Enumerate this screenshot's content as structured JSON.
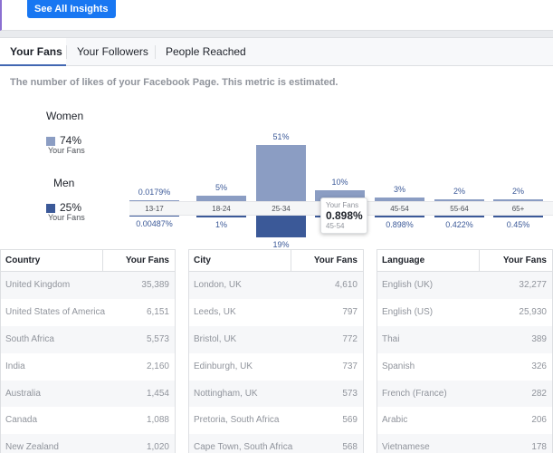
{
  "top": {
    "see_all_label": "See All Insights"
  },
  "tabs": [
    {
      "label": "Your Fans"
    },
    {
      "label": "Your Followers"
    },
    {
      "label": "People Reached"
    }
  ],
  "description": "The number of likes of your Facebook Page. This metric is estimated.",
  "legend": {
    "women": {
      "label": "Women",
      "percent": "74%",
      "sub": "Your Fans",
      "color": "#8b9dc3"
    },
    "men": {
      "label": "Men",
      "percent": "25%",
      "sub": "Your Fans",
      "color": "#3b5998"
    }
  },
  "chart_data": {
    "type": "bar",
    "categories": [
      "13-17",
      "18-24",
      "25-34",
      "35-44",
      "45-54",
      "55-64",
      "65+"
    ],
    "series": [
      {
        "name": "Women",
        "values": [
          0.0179,
          5,
          51,
          10,
          3,
          2,
          2
        ],
        "labels": [
          "0.0179%",
          "5%",
          "51%",
          "10%",
          "3%",
          "2%",
          "2%"
        ]
      },
      {
        "name": "Men",
        "values": [
          0.00487,
          1,
          19,
          0.898,
          0.898,
          0.422,
          0.45
        ],
        "labels": [
          "0.00487%",
          "1%",
          "19%",
          "0.898%",
          "0.898%",
          "0.422%",
          "0.45%"
        ]
      }
    ]
  },
  "tooltip": {
    "title": "Your Fans",
    "value": "0.898%",
    "sub": "45-54"
  },
  "tables": [
    {
      "header": "Country",
      "value_header": "Your Fans",
      "rows": [
        {
          "name": "United Kingdom",
          "value": "35,389"
        },
        {
          "name": "United States of America",
          "value": "6,151"
        },
        {
          "name": "South Africa",
          "value": "5,573"
        },
        {
          "name": "India",
          "value": "2,160"
        },
        {
          "name": "Australia",
          "value": "1,454"
        },
        {
          "name": "Canada",
          "value": "1,088"
        },
        {
          "name": "New Zealand",
          "value": "1,020"
        }
      ]
    },
    {
      "header": "City",
      "value_header": "Your Fans",
      "rows": [
        {
          "name": "London, UK",
          "value": "4,610"
        },
        {
          "name": "Leeds, UK",
          "value": "797"
        },
        {
          "name": "Bristol, UK",
          "value": "772"
        },
        {
          "name": "Edinburgh, UK",
          "value": "737"
        },
        {
          "name": "Nottingham, UK",
          "value": "573"
        },
        {
          "name": "Pretoria, South Africa",
          "value": "569"
        },
        {
          "name": "Cape Town, South Africa",
          "value": "568"
        }
      ]
    },
    {
      "header": "Language",
      "value_header": "Your Fans",
      "rows": [
        {
          "name": "English (UK)",
          "value": "32,277"
        },
        {
          "name": "English (US)",
          "value": "25,930"
        },
        {
          "name": "Thai",
          "value": "389"
        },
        {
          "name": "Spanish",
          "value": "326"
        },
        {
          "name": "French (France)",
          "value": "282"
        },
        {
          "name": "Arabic",
          "value": "206"
        },
        {
          "name": "Vietnamese",
          "value": "178"
        }
      ]
    }
  ]
}
